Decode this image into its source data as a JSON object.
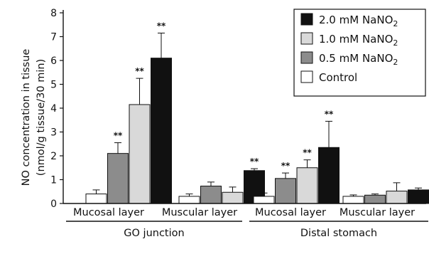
{
  "chart_data": {
    "type": "bar",
    "ylabel_line1": "NO concentration in tissue",
    "ylabel_line2": "(nmol/g tissue/30 min)",
    "ylim": [
      0,
      8
    ],
    "yticks": [
      "0",
      "1",
      "2",
      "3",
      "4",
      "5",
      "6",
      "7",
      "8"
    ],
    "groups": [
      {
        "name": "GO junction",
        "subgroups": [
          "Mucosal layer",
          "Muscular layer"
        ]
      },
      {
        "name": "Distal stomach",
        "subgroups": [
          "Mucosal layer",
          "Muscular layer"
        ]
      }
    ],
    "categories": [
      "GO junction – Mucosal layer",
      "GO junction – Muscular layer",
      "Distal stomach – Mucosal layer",
      "Distal stomach – Muscular layer"
    ],
    "series": [
      {
        "name": "Control",
        "color": "#ffffff",
        "values": [
          0.4,
          0.3,
          0.3,
          0.3
        ],
        "errors": [
          0.17,
          0.1,
          0.14,
          0.06
        ],
        "significance": [
          "",
          "",
          "",
          ""
        ]
      },
      {
        "name": "0.5 mM NaNO2",
        "color": "#8c8c8c",
        "values": [
          2.1,
          0.73,
          1.05,
          0.35
        ],
        "errors": [
          0.45,
          0.17,
          0.23,
          0.05
        ],
        "significance": [
          "**",
          "",
          "**",
          ""
        ]
      },
      {
        "name": "1.0 mM NaNO2",
        "color": "#d9d9d9",
        "values": [
          4.15,
          0.47,
          1.5,
          0.52
        ],
        "errors": [
          1.1,
          0.22,
          0.33,
          0.35
        ],
        "significance": [
          "**",
          "",
          "**",
          ""
        ]
      },
      {
        "name": "2.0 mM NaNO2",
        "color": "#111111",
        "values": [
          6.1,
          1.38,
          2.35,
          0.57
        ],
        "errors": [
          1.05,
          0.08,
          1.1,
          0.08
        ],
        "significance": [
          "**",
          "**",
          "**",
          ""
        ]
      }
    ],
    "legend": {
      "placement": "top-right",
      "order": [
        "2.0 mM NaNO2",
        "1.0 mM NaNO2",
        "0.5 mM NaNO2",
        "Control"
      ],
      "labels": [
        {
          "prefix": "2.0 mM NaNO",
          "sub": "2"
        },
        {
          "prefix": "1.0 mM NaNO",
          "sub": "2"
        },
        {
          "prefix": "0.5 mM NaNO",
          "sub": "2"
        },
        {
          "prefix": "Control",
          "sub": ""
        }
      ]
    },
    "grid": false
  }
}
